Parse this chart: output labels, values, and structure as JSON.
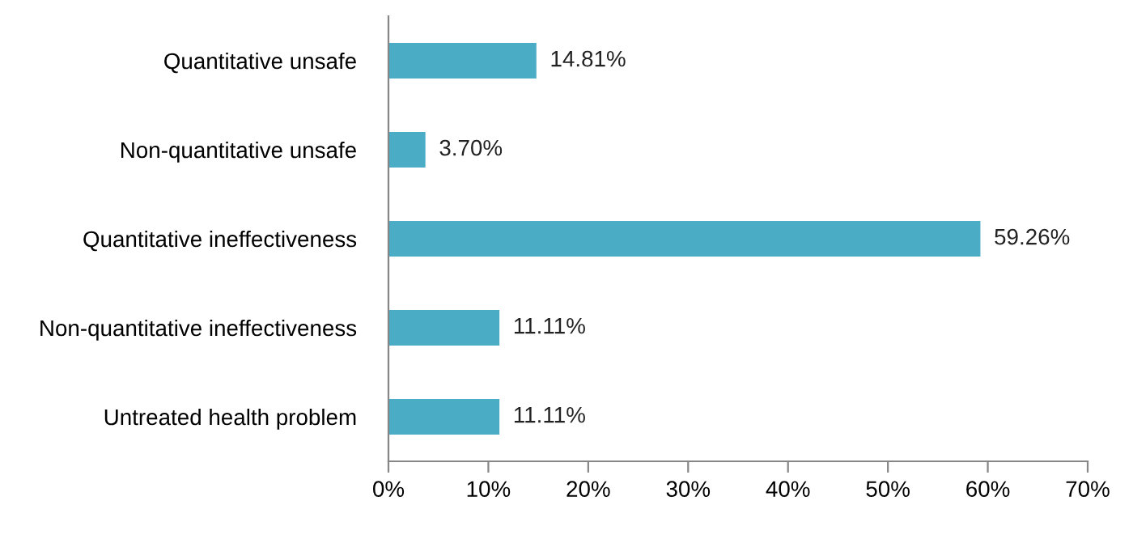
{
  "chart_data": {
    "type": "bar",
    "orientation": "horizontal",
    "categories": [
      "Quantitative unsafe",
      "Non-quantitative unsafe",
      "Quantitative ineffectiveness",
      "Non-quantitative ineffectiveness",
      "Untreated health problem"
    ],
    "values": [
      14.81,
      3.7,
      59.26,
      11.11,
      11.11
    ],
    "value_labels": [
      "14.81%",
      "3.70%",
      "59.26%",
      "11.11%",
      "11.11%"
    ],
    "color": "#4bacc6",
    "xlim": [
      0,
      70
    ],
    "xticks": [
      {
        "value": 0,
        "label": "0%"
      },
      {
        "value": 10,
        "label": "10%"
      },
      {
        "value": 20,
        "label": "20%"
      },
      {
        "value": 30,
        "label": "30%"
      },
      {
        "value": 40,
        "label": "40%"
      },
      {
        "value": 50,
        "label": "50%"
      },
      {
        "value": 60,
        "label": "60%"
      },
      {
        "value": 70,
        "label": "70%"
      }
    ],
    "grid": false,
    "legend": false
  }
}
